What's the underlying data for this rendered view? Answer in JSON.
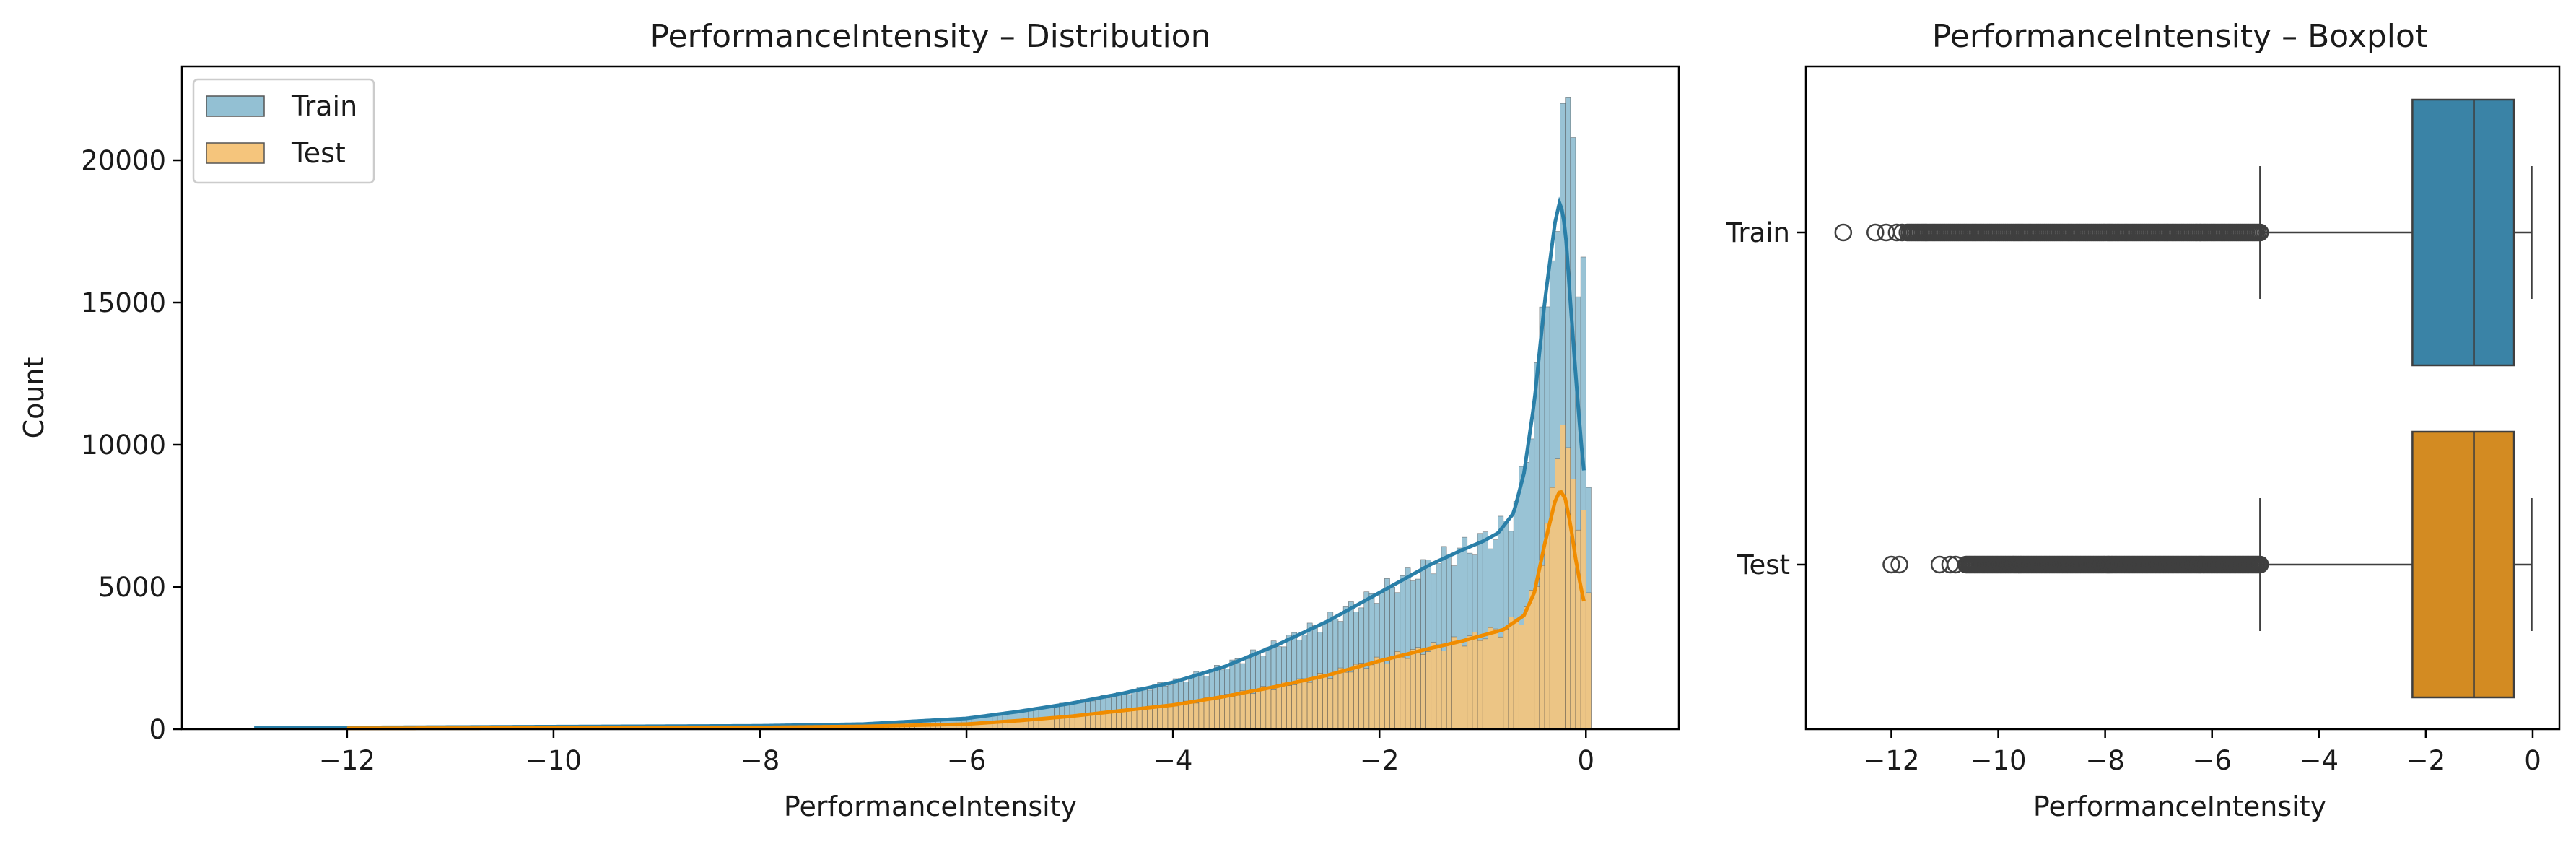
{
  "chart_data": [
    {
      "type": "histogram",
      "title": "PerformanceIntensity – Distribution",
      "xlabel": "PerformanceIntensity",
      "ylabel": "Count",
      "xlim": [
        -13.6,
        0.9
      ],
      "ylim": [
        0,
        23300
      ],
      "xticks": [
        -12,
        -10,
        -8,
        -6,
        -4,
        -2,
        0
      ],
      "xtick_labels": [
        "−12",
        "−10",
        "−8",
        "−6",
        "−4",
        "−2",
        "0"
      ],
      "yticks": [
        0,
        5000,
        10000,
        15000,
        20000
      ],
      "ytick_labels": [
        "0",
        "5000",
        "10000",
        "15000",
        "20000"
      ],
      "bin_width": 0.05,
      "legend": {
        "position": "top-left",
        "entries": [
          "Train",
          "Test"
        ]
      },
      "series": [
        {
          "name": "Train",
          "bar_color": "#93c0d3",
          "kde_color": "#2a7fa8",
          "kde": {
            "x": [
              -12.9,
              -12,
              -10,
              -8,
              -7,
              -6,
              -5.5,
              -5,
              -4.5,
              -4,
              -3.5,
              -3,
              -2.5,
              -2,
              -1.5,
              -1.2,
              -1,
              -0.85,
              -0.7,
              -0.6,
              -0.5,
              -0.4,
              -0.3,
              -0.25,
              -0.2,
              -0.15,
              -0.1,
              -0.05,
              -0.02
            ],
            "y": [
              40,
              60,
              90,
              120,
              180,
              380,
              620,
              900,
              1250,
              1650,
              2200,
              2950,
              3800,
              4800,
              5800,
              6300,
              6600,
              6900,
              7600,
              9000,
              11500,
              15000,
              17800,
              18600,
              17600,
              15000,
              12500,
              10200,
              9100
            ]
          },
          "peak_bars": {
            "x": [
              -0.3,
              -0.25,
              -0.2,
              -0.15,
              -0.1,
              -0.05
            ],
            "y": [
              17500,
              22000,
              22200,
              20800,
              15200,
              16600
            ]
          }
        },
        {
          "name": "Test",
          "bar_color": "#f5c57c",
          "kde_color": "#f08c00",
          "kde": {
            "x": [
              -12,
              -10,
              -8,
              -7,
              -6,
              -5.5,
              -5,
              -4.5,
              -4,
              -3.5,
              -3,
              -2.5,
              -2,
              -1.5,
              -1.2,
              -1,
              -0.8,
              -0.6,
              -0.5,
              -0.4,
              -0.3,
              -0.25,
              -0.2,
              -0.15,
              -0.1,
              -0.05,
              -0.02
            ],
            "y": [
              30,
              40,
              60,
              100,
              180,
              300,
              450,
              650,
              850,
              1150,
              1500,
              1900,
              2400,
              2850,
              3100,
              3300,
              3500,
              4000,
              4800,
              6500,
              8000,
              8400,
              8100,
              7200,
              6000,
              5000,
              4500
            ]
          },
          "peak_bars": {
            "x": [
              -0.35,
              -0.3,
              -0.25,
              -0.2,
              -0.15,
              -0.1,
              -0.05
            ],
            "y": [
              8500,
              9500,
              10700,
              9900,
              8800,
              7000,
              7700
            ]
          }
        }
      ]
    },
    {
      "type": "boxplot",
      "title": "PerformanceIntensity – Boxplot",
      "xlabel": "PerformanceIntensity",
      "xlim": [
        -13.6,
        0.5
      ],
      "xticks": [
        -12,
        -10,
        -8,
        -6,
        -4,
        -2,
        0
      ],
      "xtick_labels": [
        "−12",
        "−10",
        "−8",
        "−6",
        "−4",
        "−2",
        "0"
      ],
      "categories": [
        "Train",
        "Test"
      ],
      "boxes": [
        {
          "name": "Train",
          "color": "#3a83a6",
          "whislo": -5.1,
          "q1": -2.25,
          "med": -1.1,
          "q3": -0.35,
          "whishi": -0.02,
          "fliers_dense_range": [
            -11.7,
            -5.1
          ],
          "fliers_sparse": [
            -12.9,
            -12.3,
            -12.1,
            -11.9,
            -11.8
          ]
        },
        {
          "name": "Test",
          "color": "#d38b22",
          "whislo": -5.1,
          "q1": -2.25,
          "med": -1.1,
          "q3": -0.35,
          "whishi": -0.02,
          "fliers_dense_range": [
            -10.6,
            -5.1
          ],
          "fliers_sparse": [
            -12.0,
            -11.85,
            -11.1,
            -10.9,
            -10.8
          ]
        }
      ]
    }
  ]
}
